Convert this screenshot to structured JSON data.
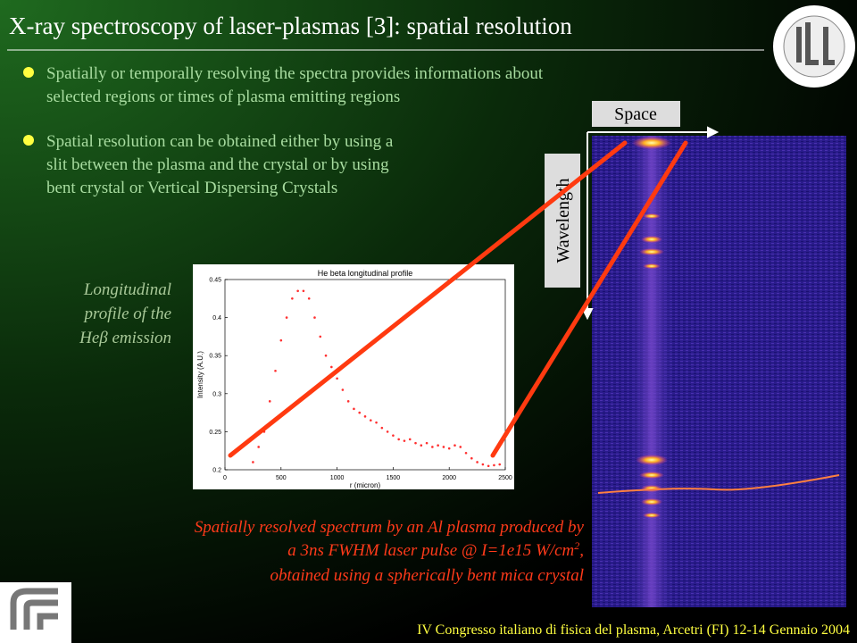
{
  "header": {
    "title": "X-ray spectroscopy of laser-plasmas [3]: spatial resolution",
    "footer": "IV Congresso italiano di fisica del plasma, Arcetri (FI) 12-14 Gennaio 2004"
  },
  "bullets": [
    {
      "lines": [
        "Spatially or temporally resolving the spectra provides informations about",
        "selected regions or times of plasma emitting regions"
      ]
    },
    {
      "lines": [
        "Spatial resolution can be obtained either by using a",
        "slit between the plasma and the crystal or by using",
        "bent crystal or Vertical Dispersing Crystals"
      ]
    }
  ],
  "spectrum": {
    "space_label": "Space",
    "wavelength_label": "Wavelength",
    "caption": {
      "line1": "Spatially resolved spectrum by an Al plasma produced by",
      "line2": [
        "a 3ns FWHM laser pulse @ I=1e15 W/cm",
        "2",
        ","
      ],
      "line3": "obtained using a spherically bent mica crystal"
    }
  },
  "profile_label": {
    "lines": [
      "Longitudinal",
      "profile of the",
      "Heβ emission"
    ]
  },
  "chart_data": {
    "type": "scatter",
    "title": "He beta longitudinal profile",
    "x_label": "r (micron)",
    "y_label": "Intensity (A.U.)",
    "color": "#ff3030",
    "x": [
      250,
      300,
      350,
      400,
      450,
      500,
      550,
      600,
      650,
      700,
      750,
      800,
      850,
      900,
      950,
      1000,
      1050,
      1100,
      1150,
      1200,
      1250,
      1300,
      1350,
      1400,
      1450,
      1500,
      1550,
      1600,
      1650,
      1700,
      1750,
      1800,
      1850,
      1900,
      1950,
      2000,
      2050,
      2100,
      2150,
      2200,
      2250,
      2300,
      2350,
      2400,
      2450
    ],
    "values": [
      0.21,
      0.23,
      0.25,
      0.29,
      0.33,
      0.37,
      0.4,
      0.425,
      0.435,
      0.435,
      0.425,
      0.4,
      0.375,
      0.35,
      0.335,
      0.32,
      0.305,
      0.29,
      0.28,
      0.275,
      0.27,
      0.265,
      0.262,
      0.255,
      0.25,
      0.245,
      0.24,
      0.238,
      0.24,
      0.235,
      0.232,
      0.235,
      0.23,
      0.232,
      0.23,
      0.228,
      0.232,
      0.23,
      0.222,
      0.215,
      0.21,
      0.207,
      0.205,
      0.206,
      0.207
    ],
    "xlim": [
      0,
      2500
    ],
    "ylim": [
      0.2,
      0.45
    ],
    "xticks": [
      0,
      500,
      1000,
      1500,
      2000,
      2500
    ],
    "yticks": [
      0.2,
      0.25,
      0.3,
      0.35,
      0.4,
      0.45
    ]
  }
}
